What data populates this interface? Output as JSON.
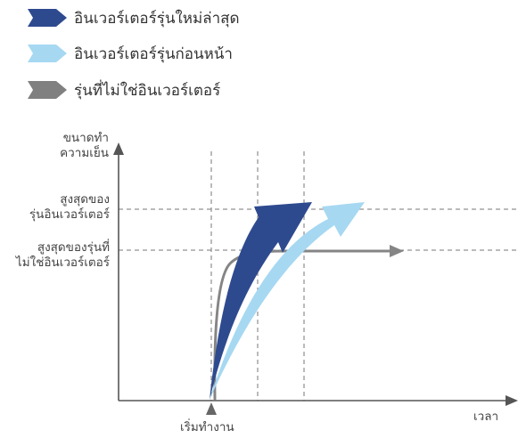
{
  "legend": [
    {
      "label": "อินเวอร์เตอร์รุ่นใหม่ล่าสุด",
      "color": "#2e4a8f",
      "icon": "dark-blue-arrow-icon"
    },
    {
      "label": "อินเวอร์เตอร์รุ่นก่อนหน้า",
      "color": "#a6d8f2",
      "icon": "light-blue-arrow-icon"
    },
    {
      "label": "รุ่นที่ไม่ใช่อินเวอร์เตอร์",
      "color": "#808080",
      "icon": "gray-arrow-icon"
    }
  ],
  "axes": {
    "y_title_line1": "ขนาดทำ",
    "y_title_line2": "ความเย็น",
    "x_title": "เวลา",
    "start_label": "เริ่มทำงาน",
    "max_inverter_line1": "สูงสุดของ",
    "max_inverter_line2": "รุ่นอินเวอร์เตอร์",
    "max_non_inverter_line1": "สูงสุดของรุ่นที่",
    "max_non_inverter_line2": "ไม่ใช่อินเวอร์เตอร์"
  },
  "colors": {
    "axis": "#555555",
    "dashed": "#777777",
    "start_marker": "#666666"
  }
}
